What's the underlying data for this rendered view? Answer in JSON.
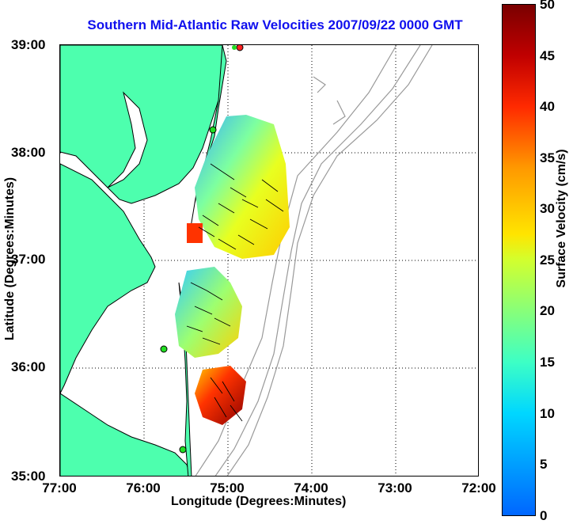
{
  "title": "Southern Mid-Atlantic Raw Velocities 2007/09/22 0000 GMT",
  "axes": {
    "xlabel": "Longitude (Degrees:Minutes)",
    "ylabel": "Latitude (Degrees:Minutes)",
    "xticks": [
      "77:00",
      "76:00",
      "75:00",
      "74:00",
      "73:00",
      "72:00"
    ],
    "yticks": [
      "39:00",
      "38:00",
      "37:00",
      "36:00",
      "35:00"
    ]
  },
  "colorbar": {
    "label": "Surface Velocity (cm/s)",
    "ticks": [
      "50",
      "45",
      "40",
      "35",
      "30",
      "25",
      "20",
      "15",
      "10",
      "5",
      "0"
    ],
    "range": [
      0,
      50
    ]
  },
  "colors": {
    "land": "#4dffae",
    "coast": "#000000",
    "bathymetry": "#999999",
    "title": "#1010ee",
    "station": "#22dd22",
    "station_active": "#ff2222"
  }
}
